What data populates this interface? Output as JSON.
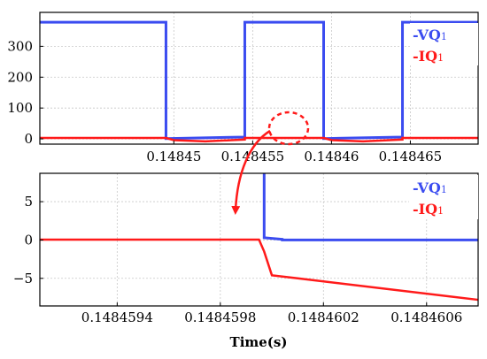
{
  "chart_data": [
    {
      "type": "line",
      "title": "",
      "xlabel": "",
      "ylabel": "",
      "xlim": [
        0.1484415,
        0.1484693
      ],
      "ylim": [
        -17,
        410
      ],
      "xticks": [
        0.14845,
        0.148455,
        0.14846,
        0.148465
      ],
      "xtick_labels": [
        "0.14845",
        "0.148455",
        "0.14846",
        "0.148465"
      ],
      "yticks": [
        0,
        100,
        200,
        300
      ],
      "ytick_labels": [
        "0",
        "100",
        "200",
        "300"
      ],
      "grid": true,
      "legend_position": "top-right",
      "series": [
        {
          "name": "-VQ1",
          "legend_main": "-VQ",
          "legend_sub": "1",
          "color": "#3b4cf0",
          "x": [
            0.1484415,
            0.1484495,
            0.1484495,
            0.1484545,
            0.1484545,
            0.1484595,
            0.1484595,
            0.1484645,
            0.1484645,
            0.1484693
          ],
          "y": [
            378,
            378,
            1,
            6,
            378,
            378,
            1,
            6,
            378,
            378
          ]
        },
        {
          "name": "-IQ1",
          "legend_main": "-IQ",
          "legend_sub": "1",
          "color": "#ff1a1a",
          "x": [
            0.1484415,
            0.1484495,
            0.14845,
            0.148452,
            0.1484545,
            0.1484545,
            0.1484595,
            0.14846,
            0.148462,
            0.1484645,
            0.1484645,
            0.1484693
          ],
          "y": [
            3,
            3,
            -4,
            -8,
            -2,
            3,
            3,
            -4,
            -8,
            -2,
            3,
            3
          ]
        }
      ]
    },
    {
      "type": "line",
      "title": "",
      "xlabel": "Time(s)",
      "ylabel": "",
      "xlim": [
        0.1484591,
        0.1484608
      ],
      "ylim": [
        -8.6,
        8.7
      ],
      "xticks": [
        0.1484594,
        0.1484598,
        0.1484602,
        0.1484606
      ],
      "xtick_labels": [
        "0.1484594",
        "0.1484598",
        "0.1484602",
        "0.1484606"
      ],
      "yticks": [
        5,
        0,
        -5
      ],
      "ytick_labels": [
        "5",
        "0",
        "−5"
      ],
      "grid": true,
      "legend_position": "top-right",
      "series": [
        {
          "name": "-VQ1",
          "legend_main": "-VQ",
          "legend_sub": "1",
          "color": "#3b4cf0",
          "x": [
            0.14845997,
            0.14845997,
            0.14846004,
            0.14846004,
            0.1484608
          ],
          "y": [
            8.7,
            0.3,
            0.1,
            0.0,
            0.0
          ]
        },
        {
          "name": "-IQ1",
          "legend_main": "-IQ",
          "legend_sub": "1",
          "color": "#ff1a1a",
          "x": [
            0.1484591,
            0.14845995,
            0.14845997,
            0.14846,
            0.1484601,
            0.1484608
          ],
          "y": [
            0.05,
            0.05,
            -1.5,
            -4.6,
            -5.0,
            -7.8
          ]
        }
      ]
    }
  ]
}
